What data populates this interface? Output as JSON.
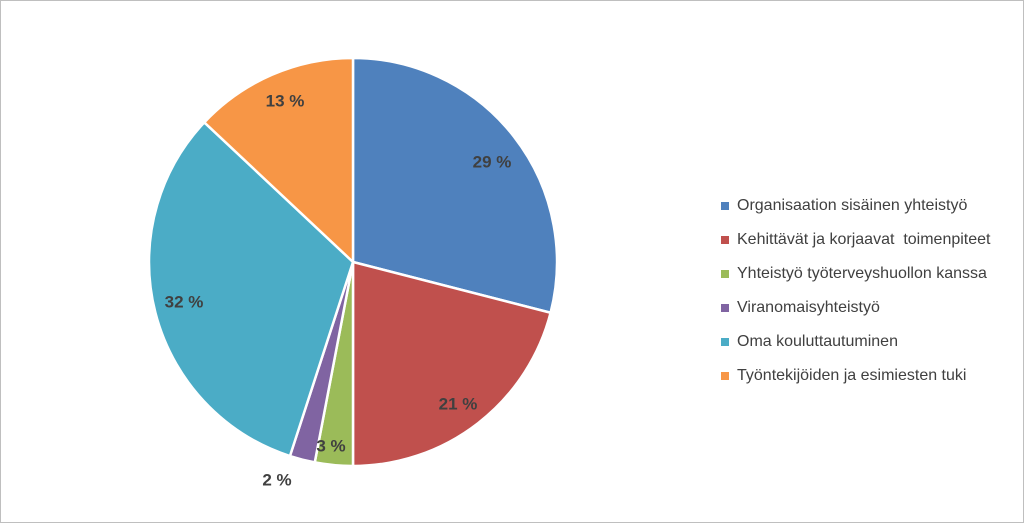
{
  "chart_data": {
    "type": "pie",
    "slices": [
      {
        "label": "Organisaation sisäinen yhteistyö",
        "value": 29,
        "display": "29 %",
        "color": "#4F81BD"
      },
      {
        "label": "Kehittävät ja korjaavat  toimenpiteet",
        "value": 21,
        "display": "21 %",
        "color": "#C0504D"
      },
      {
        "label": "Yhteistyö työterveyshuollon kanssa",
        "value": 3,
        "display": "3 %",
        "color": "#9BBB59"
      },
      {
        "label": "Viranomaisyhteistyö",
        "value": 2,
        "display": "2 %",
        "color": "#8064A2"
      },
      {
        "label": "Oma kouluttautuminen",
        "value": 32,
        "display": "32 %",
        "color": "#4BACC6"
      },
      {
        "label": "Työntekijöiden ja esimiesten tuki",
        "value": 13,
        "display": "13 %",
        "color": "#F79646"
      }
    ],
    "legend_position": "right"
  }
}
